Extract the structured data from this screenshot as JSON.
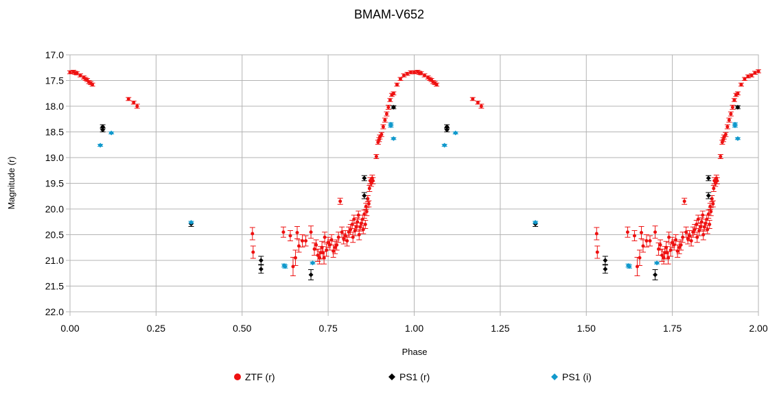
{
  "chart_data": {
    "type": "scatter",
    "title": "BMAM-V652",
    "xlabel": "Phase",
    "ylabel": "Magnitude (r)",
    "xlim": [
      0,
      2
    ],
    "ylim": [
      17,
      22
    ],
    "y_inverted": true,
    "grid": true,
    "legend_position": "bottom",
    "x_ticks": [
      "0.00",
      "0.25",
      "0.50",
      "0.75",
      "1.00",
      "1.25",
      "1.50",
      "1.75",
      "2.00"
    ],
    "y_ticks": [
      "17.0",
      "17.5",
      "18.0",
      "18.5",
      "19.0",
      "19.5",
      "20.0",
      "20.5",
      "21.0",
      "21.5",
      "22.0"
    ],
    "series": [
      {
        "name": "ZTF (r)",
        "color": "#ee1111",
        "marker": "circle",
        "points": [
          [
            0.0,
            17.34,
            0.03
          ],
          [
            0.01,
            17.33,
            0.03
          ],
          [
            0.015,
            17.35,
            0.03
          ],
          [
            0.02,
            17.36,
            0.03
          ],
          [
            0.03,
            17.4,
            0.03
          ],
          [
            0.04,
            17.44,
            0.03
          ],
          [
            0.045,
            17.47,
            0.03
          ],
          [
            0.05,
            17.49,
            0.03
          ],
          [
            0.055,
            17.53,
            0.03
          ],
          [
            0.06,
            17.55,
            0.03
          ],
          [
            0.065,
            17.58,
            0.03
          ],
          [
            0.17,
            17.86,
            0.03
          ],
          [
            0.185,
            17.93,
            0.03
          ],
          [
            0.195,
            18.0,
            0.04
          ],
          [
            0.53,
            20.48,
            0.12
          ],
          [
            0.532,
            20.84,
            0.12
          ],
          [
            0.62,
            20.45,
            0.1
          ],
          [
            0.64,
            20.52,
            0.1
          ],
          [
            0.648,
            21.12,
            0.18
          ],
          [
            0.655,
            20.95,
            0.15
          ],
          [
            0.66,
            20.46,
            0.12
          ],
          [
            0.665,
            20.72,
            0.12
          ],
          [
            0.675,
            20.62,
            0.12
          ],
          [
            0.685,
            20.62,
            0.1
          ],
          [
            0.7,
            20.45,
            0.12
          ],
          [
            0.71,
            20.78,
            0.12
          ],
          [
            0.715,
            20.7,
            0.1
          ],
          [
            0.72,
            20.9,
            0.12
          ],
          [
            0.725,
            20.95,
            0.12
          ],
          [
            0.728,
            20.85,
            0.12
          ],
          [
            0.732,
            20.75,
            0.12
          ],
          [
            0.735,
            20.85,
            0.12
          ],
          [
            0.738,
            20.95,
            0.12
          ],
          [
            0.74,
            20.55,
            0.1
          ],
          [
            0.745,
            20.8,
            0.12
          ],
          [
            0.75,
            20.65,
            0.1
          ],
          [
            0.755,
            20.7,
            0.1
          ],
          [
            0.76,
            20.6,
            0.1
          ],
          [
            0.765,
            20.82,
            0.12
          ],
          [
            0.77,
            20.75,
            0.12
          ],
          [
            0.775,
            20.7,
            0.1
          ],
          [
            0.78,
            20.55,
            0.1
          ],
          [
            0.785,
            19.85,
            0.06
          ],
          [
            0.79,
            20.45,
            0.1
          ],
          [
            0.795,
            20.58,
            0.1
          ],
          [
            0.8,
            20.52,
            0.1
          ],
          [
            0.805,
            20.62,
            0.1
          ],
          [
            0.81,
            20.45,
            0.1
          ],
          [
            0.815,
            20.4,
            0.1
          ],
          [
            0.82,
            20.3,
            0.08
          ],
          [
            0.822,
            20.55,
            0.1
          ],
          [
            0.825,
            20.2,
            0.08
          ],
          [
            0.828,
            20.42,
            0.1
          ],
          [
            0.832,
            20.35,
            0.08
          ],
          [
            0.835,
            20.25,
            0.08
          ],
          [
            0.838,
            20.12,
            0.08
          ],
          [
            0.84,
            20.5,
            0.1
          ],
          [
            0.843,
            20.35,
            0.08
          ],
          [
            0.846,
            20.28,
            0.08
          ],
          [
            0.85,
            20.2,
            0.08
          ],
          [
            0.852,
            20.4,
            0.08
          ],
          [
            0.855,
            20.1,
            0.08
          ],
          [
            0.858,
            20.3,
            0.08
          ],
          [
            0.86,
            19.95,
            0.06
          ],
          [
            0.862,
            20.05,
            0.08
          ],
          [
            0.865,
            19.8,
            0.06
          ],
          [
            0.868,
            19.9,
            0.06
          ],
          [
            0.87,
            19.6,
            0.06
          ],
          [
            0.872,
            19.45,
            0.06
          ],
          [
            0.875,
            19.5,
            0.06
          ],
          [
            0.878,
            19.4,
            0.06
          ],
          [
            0.88,
            19.45,
            0.06
          ],
          [
            0.89,
            18.98,
            0.04
          ],
          [
            0.895,
            18.7,
            0.04
          ],
          [
            0.898,
            18.65,
            0.04
          ],
          [
            0.9,
            18.6,
            0.04
          ],
          [
            0.905,
            18.55,
            0.04
          ],
          [
            0.91,
            18.4,
            0.04
          ],
          [
            0.915,
            18.27,
            0.04
          ],
          [
            0.92,
            18.15,
            0.04
          ],
          [
            0.925,
            18.02,
            0.04
          ],
          [
            0.93,
            17.88,
            0.03
          ],
          [
            0.935,
            17.78,
            0.03
          ],
          [
            0.94,
            17.75,
            0.03
          ],
          [
            0.95,
            17.58,
            0.03
          ],
          [
            0.96,
            17.47,
            0.03
          ],
          [
            0.97,
            17.4,
            0.03
          ],
          [
            0.98,
            17.37,
            0.03
          ],
          [
            0.99,
            17.34,
            0.03
          ],
          [
            1.0,
            17.34,
            0.03
          ],
          [
            1.01,
            17.33,
            0.03
          ],
          [
            1.015,
            17.35,
            0.03
          ],
          [
            1.02,
            17.36,
            0.03
          ],
          [
            1.03,
            17.4,
            0.03
          ],
          [
            1.04,
            17.44,
            0.03
          ],
          [
            1.045,
            17.47,
            0.03
          ],
          [
            1.05,
            17.49,
            0.03
          ],
          [
            1.055,
            17.53,
            0.03
          ],
          [
            1.06,
            17.55,
            0.03
          ],
          [
            1.065,
            17.58,
            0.03
          ],
          [
            1.17,
            17.86,
            0.03
          ],
          [
            1.185,
            17.93,
            0.03
          ],
          [
            1.195,
            18.0,
            0.04
          ],
          [
            1.53,
            20.48,
            0.12
          ],
          [
            1.532,
            20.84,
            0.12
          ],
          [
            1.62,
            20.45,
            0.1
          ],
          [
            1.64,
            20.52,
            0.1
          ],
          [
            1.648,
            21.12,
            0.18
          ],
          [
            1.655,
            20.95,
            0.15
          ],
          [
            1.66,
            20.46,
            0.12
          ],
          [
            1.665,
            20.72,
            0.12
          ],
          [
            1.675,
            20.62,
            0.12
          ],
          [
            1.685,
            20.62,
            0.1
          ],
          [
            1.7,
            20.45,
            0.12
          ],
          [
            1.71,
            20.78,
            0.12
          ],
          [
            1.715,
            20.7,
            0.1
          ],
          [
            1.72,
            20.9,
            0.12
          ],
          [
            1.725,
            20.95,
            0.12
          ],
          [
            1.728,
            20.85,
            0.12
          ],
          [
            1.732,
            20.75,
            0.12
          ],
          [
            1.735,
            20.85,
            0.12
          ],
          [
            1.738,
            20.95,
            0.12
          ],
          [
            1.74,
            20.55,
            0.1
          ],
          [
            1.745,
            20.8,
            0.12
          ],
          [
            1.75,
            20.65,
            0.1
          ],
          [
            1.755,
            20.7,
            0.1
          ],
          [
            1.76,
            20.6,
            0.1
          ],
          [
            1.765,
            20.82,
            0.12
          ],
          [
            1.77,
            20.75,
            0.12
          ],
          [
            1.775,
            20.7,
            0.1
          ],
          [
            1.78,
            20.55,
            0.1
          ],
          [
            1.785,
            19.85,
            0.06
          ],
          [
            1.79,
            20.45,
            0.1
          ],
          [
            1.795,
            20.58,
            0.1
          ],
          [
            1.8,
            20.52,
            0.1
          ],
          [
            1.805,
            20.62,
            0.1
          ],
          [
            1.81,
            20.45,
            0.1
          ],
          [
            1.815,
            20.4,
            0.1
          ],
          [
            1.82,
            20.3,
            0.08
          ],
          [
            1.822,
            20.55,
            0.1
          ],
          [
            1.825,
            20.2,
            0.08
          ],
          [
            1.828,
            20.42,
            0.1
          ],
          [
            1.832,
            20.35,
            0.08
          ],
          [
            1.835,
            20.25,
            0.08
          ],
          [
            1.838,
            20.12,
            0.08
          ],
          [
            1.84,
            20.5,
            0.1
          ],
          [
            1.843,
            20.35,
            0.08
          ],
          [
            1.846,
            20.28,
            0.08
          ],
          [
            1.85,
            20.2,
            0.08
          ],
          [
            1.852,
            20.4,
            0.08
          ],
          [
            1.855,
            20.1,
            0.08
          ],
          [
            1.858,
            20.3,
            0.08
          ],
          [
            1.86,
            19.95,
            0.06
          ],
          [
            1.862,
            20.05,
            0.08
          ],
          [
            1.865,
            19.8,
            0.06
          ],
          [
            1.868,
            19.9,
            0.06
          ],
          [
            1.87,
            19.6,
            0.06
          ],
          [
            1.872,
            19.45,
            0.06
          ],
          [
            1.875,
            19.5,
            0.06
          ],
          [
            1.878,
            19.4,
            0.06
          ],
          [
            1.88,
            19.45,
            0.06
          ],
          [
            1.89,
            18.98,
            0.04
          ],
          [
            1.895,
            18.7,
            0.04
          ],
          [
            1.898,
            18.65,
            0.04
          ],
          [
            1.9,
            18.6,
            0.04
          ],
          [
            1.905,
            18.55,
            0.04
          ],
          [
            1.91,
            18.4,
            0.04
          ],
          [
            1.915,
            18.27,
            0.04
          ],
          [
            1.92,
            18.15,
            0.04
          ],
          [
            1.925,
            18.02,
            0.04
          ],
          [
            1.93,
            17.88,
            0.03
          ],
          [
            1.935,
            17.78,
            0.03
          ],
          [
            1.94,
            17.75,
            0.03
          ],
          [
            1.95,
            17.58,
            0.03
          ],
          [
            1.96,
            17.47,
            0.03
          ],
          [
            1.97,
            17.42,
            0.03
          ],
          [
            1.98,
            17.4,
            0.03
          ],
          [
            1.99,
            17.35,
            0.03
          ],
          [
            2.0,
            17.32,
            0.03
          ]
        ]
      },
      {
        "name": "PS1 (r)",
        "color": "#000000",
        "marker": "diamond",
        "points": [
          [
            0.095,
            18.4,
            0.04
          ],
          [
            0.095,
            18.46,
            0.04
          ],
          [
            0.352,
            20.29,
            0.05
          ],
          [
            0.555,
            21.0,
            0.08
          ],
          [
            0.555,
            21.17,
            0.08
          ],
          [
            0.7,
            21.28,
            0.1
          ],
          [
            0.855,
            19.4,
            0.05
          ],
          [
            0.855,
            19.74,
            0.06
          ],
          [
            0.94,
            18.02,
            0.03
          ],
          [
            1.095,
            18.4,
            0.04
          ],
          [
            1.095,
            18.46,
            0.04
          ],
          [
            1.352,
            20.29,
            0.05
          ],
          [
            1.555,
            21.0,
            0.08
          ],
          [
            1.555,
            21.17,
            0.08
          ],
          [
            1.7,
            21.28,
            0.1
          ],
          [
            1.855,
            19.4,
            0.05
          ],
          [
            1.855,
            19.74,
            0.06
          ],
          [
            1.94,
            18.02,
            0.03
          ]
        ]
      },
      {
        "name": "PS1 (i)",
        "color": "#1199cc",
        "marker": "diamond",
        "points": [
          [
            0.088,
            18.76,
            0.02
          ],
          [
            0.12,
            18.52,
            0.02
          ],
          [
            0.352,
            20.26,
            0.02
          ],
          [
            0.622,
            21.1,
            0.03
          ],
          [
            0.625,
            21.12,
            0.03
          ],
          [
            0.705,
            21.05,
            0.02
          ],
          [
            0.932,
            18.38,
            0.03
          ],
          [
            0.932,
            18.35,
            0.03
          ],
          [
            0.94,
            18.63,
            0.02
          ],
          [
            1.088,
            18.76,
            0.02
          ],
          [
            1.12,
            18.52,
            0.02
          ],
          [
            1.352,
            20.26,
            0.02
          ],
          [
            1.622,
            21.1,
            0.03
          ],
          [
            1.625,
            21.12,
            0.03
          ],
          [
            1.705,
            21.05,
            0.02
          ],
          [
            1.932,
            18.38,
            0.03
          ],
          [
            1.932,
            18.35,
            0.03
          ],
          [
            1.94,
            18.63,
            0.02
          ]
        ]
      }
    ]
  }
}
